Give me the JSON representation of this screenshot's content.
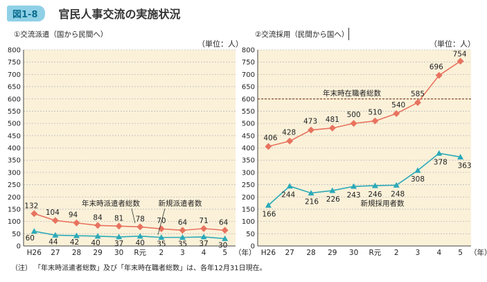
{
  "figure": {
    "badge": "図1-8",
    "title": "官民人事交流の実施状況",
    "note": "（注） 「年末時派遣者総数」及び「年末時在職者総数」は、各年12月31日現在。"
  },
  "colors": {
    "badge_bg": "#8fd0e6",
    "plot_bg": "#fbf1d9",
    "series_total": "#e8735f",
    "series_new": "#2aa9b8",
    "grid": "#bbbbbb",
    "reference_line": "#8a4b2b"
  },
  "chart_data": [
    {
      "type": "line",
      "title": "①交流派遣（国から民間へ）",
      "unit_label": "（単位：人）",
      "categories": [
        "H26",
        "27",
        "28",
        "29",
        "30",
        "R元",
        "2",
        "3",
        "4",
        "5"
      ],
      "x_unit": "（年）",
      "ylim": [
        0,
        800
      ],
      "yticks": [
        0,
        50,
        100,
        150,
        200,
        250,
        300,
        350,
        400,
        450,
        500,
        550,
        600,
        650,
        700,
        750,
        800
      ],
      "grid": "horizontal dashed",
      "series": [
        {
          "name": "年末時派遣者総数",
          "values": [
            132,
            104,
            94,
            84,
            81,
            78,
            70,
            64,
            71,
            64
          ]
        },
        {
          "name": "新規派遣者数",
          "values": [
            60,
            44,
            42,
            40,
            37,
            40,
            35,
            35,
            37,
            30
          ]
        }
      ]
    },
    {
      "type": "line",
      "title": "②交流採用（民間から国へ）",
      "unit_label": "（単位：人）",
      "categories": [
        "H26",
        "27",
        "28",
        "29",
        "30",
        "R元",
        "2",
        "3",
        "4",
        "5"
      ],
      "x_unit": "（年）",
      "ylim": [
        0,
        800
      ],
      "yticks": [
        0,
        50,
        100,
        150,
        200,
        250,
        300,
        350,
        400,
        450,
        500,
        550,
        600,
        650,
        700,
        750,
        800
      ],
      "grid": "horizontal dashed",
      "reference_line": {
        "label": "年末時在職者総数",
        "value": 600
      },
      "series": [
        {
          "name": "",
          "values": [
            406,
            428,
            473,
            481,
            500,
            510,
            540,
            585,
            696,
            754
          ]
        },
        {
          "name": "新規採用者数",
          "values": [
            166,
            244,
            216,
            226,
            243,
            246,
            248,
            308,
            378,
            363
          ]
        }
      ]
    }
  ]
}
